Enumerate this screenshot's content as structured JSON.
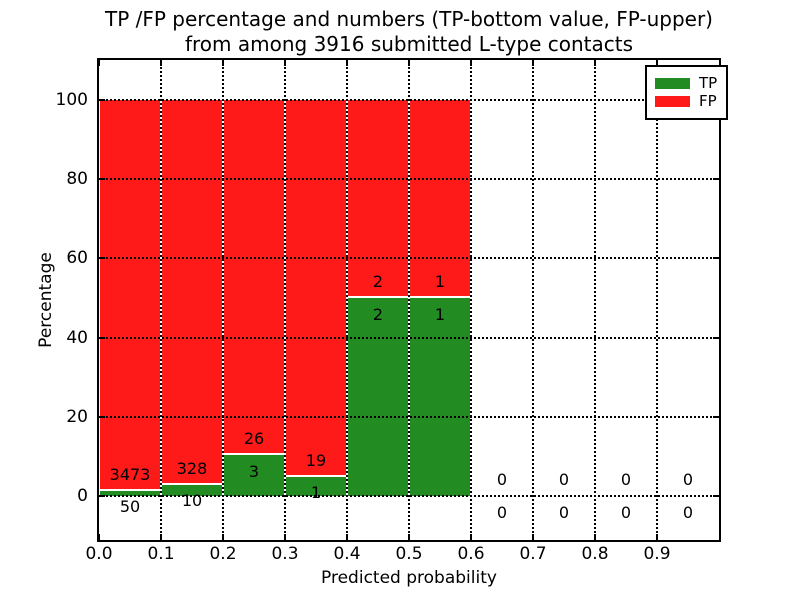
{
  "title": {
    "line1": "TP /FP percentage and numbers (TP-bottom value, FP-upper)",
    "line2": "from among 3916 submitted L-type contacts"
  },
  "chart_data": {
    "type": "bar",
    "stacked": true,
    "title": "TP /FP percentage and numbers (TP-bottom value, FP-upper) from among 3916 submitted L-type contacts",
    "xlabel": "Predicted probability",
    "ylabel": "Percentage",
    "xlim": [
      0.0,
      1.0
    ],
    "ylim": [
      -11,
      110
    ],
    "x_ticks": [
      {
        "value": 0.0,
        "label": "0.0"
      },
      {
        "value": 0.1,
        "label": "0.1"
      },
      {
        "value": 0.2,
        "label": "0.2"
      },
      {
        "value": 0.3,
        "label": "0.3"
      },
      {
        "value": 0.4,
        "label": "0.4"
      },
      {
        "value": 0.5,
        "label": "0.5"
      },
      {
        "value": 0.6,
        "label": "0.6"
      },
      {
        "value": 0.7,
        "label": "0.7"
      },
      {
        "value": 0.8,
        "label": "0.8"
      },
      {
        "value": 0.9,
        "label": "0.9"
      }
    ],
    "y_ticks": [
      {
        "value": 0,
        "label": "0"
      },
      {
        "value": 20,
        "label": "20"
      },
      {
        "value": 40,
        "label": "40"
      },
      {
        "value": 60,
        "label": "60"
      },
      {
        "value": 80,
        "label": "80"
      },
      {
        "value": 100,
        "label": "100"
      }
    ],
    "grid": "dotted",
    "colors": {
      "tp": "#228b22",
      "fp": "#ff1a1a",
      "bar_edge": "#ffffff"
    },
    "legend": {
      "position": "upper right",
      "entries": [
        {
          "label": "TP",
          "color": "#228b22"
        },
        {
          "label": "FP",
          "color": "#ff1a1a"
        }
      ]
    },
    "total_contacts": 3916,
    "bins": [
      {
        "x_start": 0.0,
        "x_end": 0.1,
        "tp": 50,
        "fp": 3473,
        "tp_pct": 1.42,
        "fp_pct": 98.58
      },
      {
        "x_start": 0.1,
        "x_end": 0.2,
        "tp": 10,
        "fp": 328,
        "tp_pct": 2.96,
        "fp_pct": 97.04
      },
      {
        "x_start": 0.2,
        "x_end": 0.3,
        "tp": 3,
        "fp": 26,
        "tp_pct": 10.34,
        "fp_pct": 89.66
      },
      {
        "x_start": 0.3,
        "x_end": 0.4,
        "tp": 1,
        "fp": 19,
        "tp_pct": 5.0,
        "fp_pct": 95.0
      },
      {
        "x_start": 0.4,
        "x_end": 0.5,
        "tp": 2,
        "fp": 2,
        "tp_pct": 50.0,
        "fp_pct": 50.0
      },
      {
        "x_start": 0.5,
        "x_end": 0.6,
        "tp": 1,
        "fp": 1,
        "tp_pct": 50.0,
        "fp_pct": 50.0
      },
      {
        "x_start": 0.6,
        "x_end": 0.7,
        "tp": 0,
        "fp": 0,
        "tp_pct": 0,
        "fp_pct": 0
      },
      {
        "x_start": 0.7,
        "x_end": 0.8,
        "tp": 0,
        "fp": 0,
        "tp_pct": 0,
        "fp_pct": 0
      },
      {
        "x_start": 0.8,
        "x_end": 0.9,
        "tp": 0,
        "fp": 0,
        "tp_pct": 0,
        "fp_pct": 0
      },
      {
        "x_start": 0.9,
        "x_end": 1.0,
        "tp": 0,
        "fp": 0,
        "tp_pct": 0,
        "fp_pct": 0
      }
    ]
  }
}
